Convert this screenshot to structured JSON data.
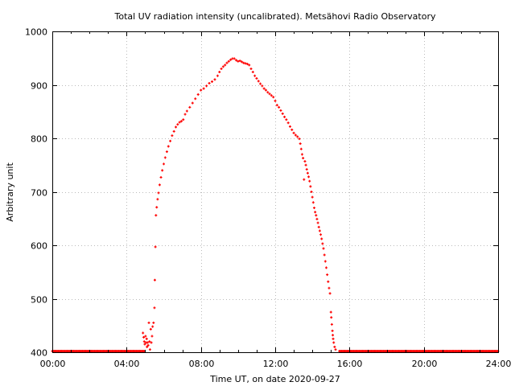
{
  "chart_data": {
    "type": "scatter",
    "title": "Total UV radiation intensity (uncalibrated). Metsähovi Radio Observatory",
    "xlabel": "Time UT, on date 2020-09-27",
    "ylabel": "Arbitrary unit",
    "xlim": [
      0,
      24
    ],
    "ylim": [
      400,
      1000
    ],
    "x_ticks": [
      {
        "value": 0,
        "label": "00:00"
      },
      {
        "value": 4,
        "label": "04:00"
      },
      {
        "value": 8,
        "label": "08:00"
      },
      {
        "value": 12,
        "label": "12:00"
      },
      {
        "value": 16,
        "label": "16:00"
      },
      {
        "value": 20,
        "label": "20:00"
      },
      {
        "value": 24,
        "label": "24:00"
      }
    ],
    "y_ticks": [
      {
        "value": 400,
        "label": "400"
      },
      {
        "value": 500,
        "label": "500"
      },
      {
        "value": 600,
        "label": "600"
      },
      {
        "value": 700,
        "label": "700"
      },
      {
        "value": 800,
        "label": "800"
      },
      {
        "value": 900,
        "label": "900"
      },
      {
        "value": 1000,
        "label": "1000"
      }
    ],
    "grid": true,
    "marker_color": "#ff0000",
    "series": [
      {
        "color": "#ff0000",
        "baseline": {
          "value": 402,
          "x_ranges": [
            [
              0,
              4.95
            ],
            [
              15.45,
              24
            ]
          ],
          "step": 0.05
        },
        "points": [
          [
            4.88,
            436
          ],
          [
            4.92,
            428
          ],
          [
            4.95,
            420
          ],
          [
            4.98,
            415
          ],
          [
            5.02,
            430
          ],
          [
            5.05,
            418
          ],
          [
            5.08,
            425
          ],
          [
            5.1,
            410
          ],
          [
            5.13,
            418
          ],
          [
            5.16,
            413
          ],
          [
            5.2,
            455
          ],
          [
            5.23,
            420
          ],
          [
            5.26,
            405
          ],
          [
            5.3,
            443
          ],
          [
            5.33,
            418
          ],
          [
            5.37,
            430
          ],
          [
            5.4,
            448
          ],
          [
            5.45,
            455
          ],
          [
            5.5,
            483
          ],
          [
            5.52,
            535
          ],
          [
            5.55,
            597
          ],
          [
            5.58,
            656
          ],
          [
            5.62,
            671
          ],
          [
            5.67,
            686
          ],
          [
            5.72,
            698
          ],
          [
            5.78,
            713
          ],
          [
            5.85,
            727
          ],
          [
            5.92,
            740
          ],
          [
            6.0,
            752
          ],
          [
            6.08,
            764
          ],
          [
            6.17,
            775
          ],
          [
            6.25,
            785
          ],
          [
            6.35,
            795
          ],
          [
            6.45,
            805
          ],
          [
            6.55,
            813
          ],
          [
            6.65,
            821
          ],
          [
            6.75,
            826
          ],
          [
            6.85,
            830
          ],
          [
            6.95,
            832
          ],
          [
            7.05,
            835
          ],
          [
            7.15,
            845
          ],
          [
            7.25,
            851
          ],
          [
            7.4,
            858
          ],
          [
            7.55,
            866
          ],
          [
            7.7,
            874
          ],
          [
            7.85,
            882
          ],
          [
            8.0,
            890
          ],
          [
            8.15,
            893
          ],
          [
            8.3,
            898
          ],
          [
            8.45,
            903
          ],
          [
            8.6,
            906
          ],
          [
            8.75,
            910
          ],
          [
            8.9,
            917
          ],
          [
            9.0,
            924
          ],
          [
            9.1,
            930
          ],
          [
            9.2,
            934
          ],
          [
            9.3,
            937
          ],
          [
            9.4,
            941
          ],
          [
            9.5,
            944
          ],
          [
            9.6,
            947
          ],
          [
            9.7,
            949
          ],
          [
            9.8,
            949
          ],
          [
            9.9,
            946
          ],
          [
            10.0,
            944
          ],
          [
            10.1,
            945
          ],
          [
            10.2,
            943
          ],
          [
            10.3,
            941
          ],
          [
            10.4,
            940
          ],
          [
            10.5,
            939
          ],
          [
            10.6,
            937
          ],
          [
            10.7,
            930
          ],
          [
            10.8,
            924
          ],
          [
            10.9,
            917
          ],
          [
            11.0,
            912
          ],
          [
            11.1,
            907
          ],
          [
            11.2,
            902
          ],
          [
            11.3,
            898
          ],
          [
            11.4,
            893
          ],
          [
            11.5,
            890
          ],
          [
            11.6,
            886
          ],
          [
            11.7,
            883
          ],
          [
            11.8,
            880
          ],
          [
            11.9,
            877
          ],
          [
            12.0,
            870
          ],
          [
            12.1,
            862
          ],
          [
            12.2,
            858
          ],
          [
            12.3,
            852
          ],
          [
            12.4,
            846
          ],
          [
            12.5,
            840
          ],
          [
            12.6,
            835
          ],
          [
            12.7,
            829
          ],
          [
            12.8,
            822
          ],
          [
            12.9,
            816
          ],
          [
            13.0,
            810
          ],
          [
            13.1,
            806
          ],
          [
            13.2,
            803
          ],
          [
            13.3,
            799
          ],
          [
            13.35,
            790
          ],
          [
            13.4,
            780
          ],
          [
            13.45,
            770
          ],
          [
            13.5,
            763
          ],
          [
            13.55,
            723
          ],
          [
            13.6,
            757
          ],
          [
            13.65,
            750
          ],
          [
            13.7,
            742
          ],
          [
            13.75,
            735
          ],
          [
            13.8,
            728
          ],
          [
            13.85,
            720
          ],
          [
            13.9,
            710
          ],
          [
            13.95,
            700
          ],
          [
            14.0,
            690
          ],
          [
            14.05,
            680
          ],
          [
            14.1,
            670
          ],
          [
            14.15,
            662
          ],
          [
            14.2,
            656
          ],
          [
            14.25,
            649
          ],
          [
            14.3,
            642
          ],
          [
            14.35,
            634
          ],
          [
            14.4,
            627
          ],
          [
            14.45,
            620
          ],
          [
            14.5,
            612
          ],
          [
            14.55,
            603
          ],
          [
            14.6,
            594
          ],
          [
            14.65,
            582
          ],
          [
            14.7,
            570
          ],
          [
            14.75,
            558
          ],
          [
            14.8,
            545
          ],
          [
            14.85,
            532
          ],
          [
            14.9,
            520
          ],
          [
            14.95,
            510
          ],
          [
            15.0,
            475
          ],
          [
            15.02,
            465
          ],
          [
            15.05,
            452
          ],
          [
            15.08,
            440
          ],
          [
            15.1,
            432
          ],
          [
            15.12,
            425
          ],
          [
            15.15,
            418
          ],
          [
            15.2,
            410
          ],
          [
            15.25,
            405
          ]
        ]
      }
    ]
  }
}
